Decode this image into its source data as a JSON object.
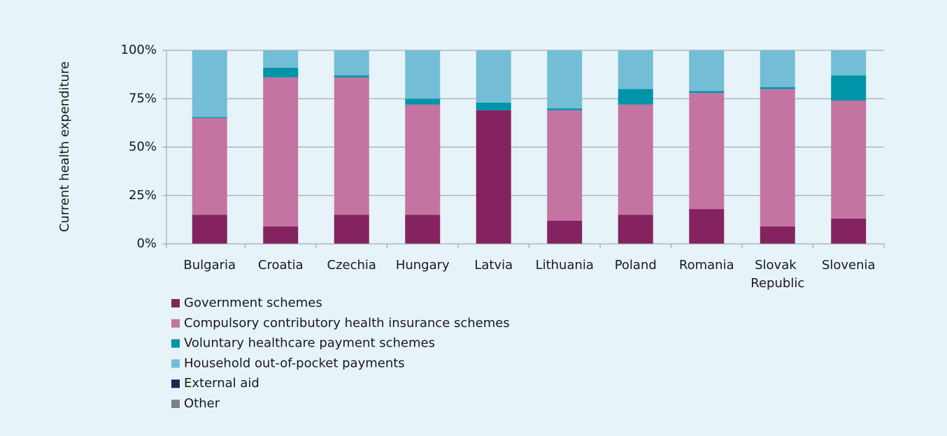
{
  "chart_data": {
    "type": "stacked-bar",
    "y_label": "Current health expenditure",
    "categories": [
      "Bulgaria",
      "Croatia",
      "Czechia",
      "Hungary",
      "Latvia",
      "Lithuania",
      "Poland",
      "Romania",
      "Slovak Republic",
      "Slovenia"
    ],
    "series": [
      {
        "name": "Government schemes",
        "color": "#84235f",
        "values": [
          15,
          9,
          15,
          15,
          69,
          12,
          15,
          18,
          9,
          13
        ]
      },
      {
        "name": "Compulsory contributory health insurance schemes",
        "color": "#c474a1",
        "values": [
          50,
          77,
          71,
          57,
          0,
          57,
          57,
          60,
          71,
          61
        ]
      },
      {
        "name": "Voluntary healthcare payment schemes",
        "color": "#0094a8",
        "values": [
          0.5,
          5,
          1,
          3,
          4,
          1,
          8,
          1,
          1,
          13
        ]
      },
      {
        "name": "Household out-of-pocket payments",
        "color": "#73bdd6",
        "values": [
          34.5,
          9,
          13,
          25,
          27,
          30,
          20,
          21,
          19,
          13
        ]
      },
      {
        "name": "External aid",
        "color": "#1c2b4f",
        "values": [
          0,
          0,
          0,
          0,
          0,
          0,
          0,
          0,
          0,
          0
        ]
      },
      {
        "name": "Other",
        "color": "#808080",
        "values": [
          0,
          0,
          0,
          0,
          0,
          0,
          0,
          0,
          0,
          0
        ]
      }
    ],
    "ylim": [
      0,
      100
    ],
    "yticks": [
      {
        "value": 0,
        "label": "0%"
      },
      {
        "value": 25,
        "label": "25%"
      },
      {
        "value": 50,
        "label": "50%"
      },
      {
        "value": 75,
        "label": "75%"
      },
      {
        "value": 100,
        "label": "100%"
      }
    ],
    "grid": true,
    "legend": "bottom"
  }
}
